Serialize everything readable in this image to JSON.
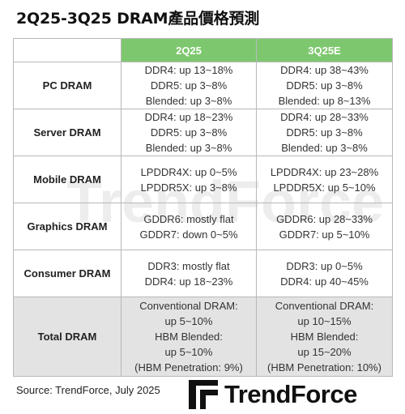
{
  "title": "2Q25-3Q25 DRAM產品價格預測",
  "table": {
    "headers": [
      "",
      "2Q25",
      "3Q25E"
    ],
    "rows": [
      {
        "label": "PC DRAM",
        "q2": [
          "DDR4: up 13~18%",
          "DDR5: up 3~8%",
          "Blended: up 3~8%"
        ],
        "q3": [
          "DDR4: up 38~43%",
          "DDR5: up 3~8%",
          "Blended: up 8~13%"
        ]
      },
      {
        "label": "Server DRAM",
        "q2": [
          "DDR4: up 18~23%",
          "DDR5: up 3~8%",
          "Blended: up 3~8%"
        ],
        "q3": [
          "DDR4: up 28~33%",
          "DDR5: up 3~8%",
          "Blended: up 3~8%"
        ]
      },
      {
        "label": "Mobile DRAM",
        "q2": [
          "LPDDR4X: up 0~5%",
          "LPDDR5X: up 3~8%"
        ],
        "q3": [
          "LPDDR4X: up 23~28%",
          "LPDDR5X: up 5~10%"
        ]
      },
      {
        "label": "Graphics DRAM",
        "q2": [
          "GDDR6: mostly flat",
          "GDDR7: down 0~5%"
        ],
        "q3": [
          "GDDR6: up 28~33%",
          "GDDR7: up 5~10%"
        ]
      },
      {
        "label": "Consumer DRAM",
        "q2": [
          "DDR3: mostly flat",
          "DDR4: up 18~23%"
        ],
        "q3": [
          "DDR3: up 0~5%",
          "DDR4: up 40~45%"
        ]
      },
      {
        "label": "Total DRAM",
        "q2": [
          "Conventional DRAM:",
          "up 5~10%",
          "HBM Blended:",
          "up 5~10%",
          "(HBM Penetration: 9%)"
        ],
        "q3": [
          "Conventional DRAM:",
          "up 10~15%",
          "HBM Blended:",
          "up 15~20%",
          "(HBM Penetration: 10%)"
        ]
      }
    ]
  },
  "source": "Source: TrendForce, July 2025",
  "logo": {
    "text": "TrendForce",
    "icon": "trendforce-logo-icon",
    "color": "#111111"
  },
  "watermark": {
    "text": "TrendForce"
  },
  "colors": {
    "header_bg": "#7dc86e",
    "header_text": "#ffffff",
    "total_row_bg": "#e3e3e3",
    "border": "#b8b8b8"
  }
}
